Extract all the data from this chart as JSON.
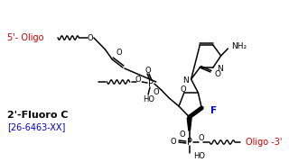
{
  "bg_color": "#ffffff",
  "red_color": "#cc0000",
  "blue_color": "#0000cd",
  "black_color": "#000000",
  "title_text": "2'-Fluoro C",
  "catalog_text": "[26-6463-XX]",
  "oligo5_text": "5'- Oligo",
  "oligo3_text": "Oligo -3'"
}
